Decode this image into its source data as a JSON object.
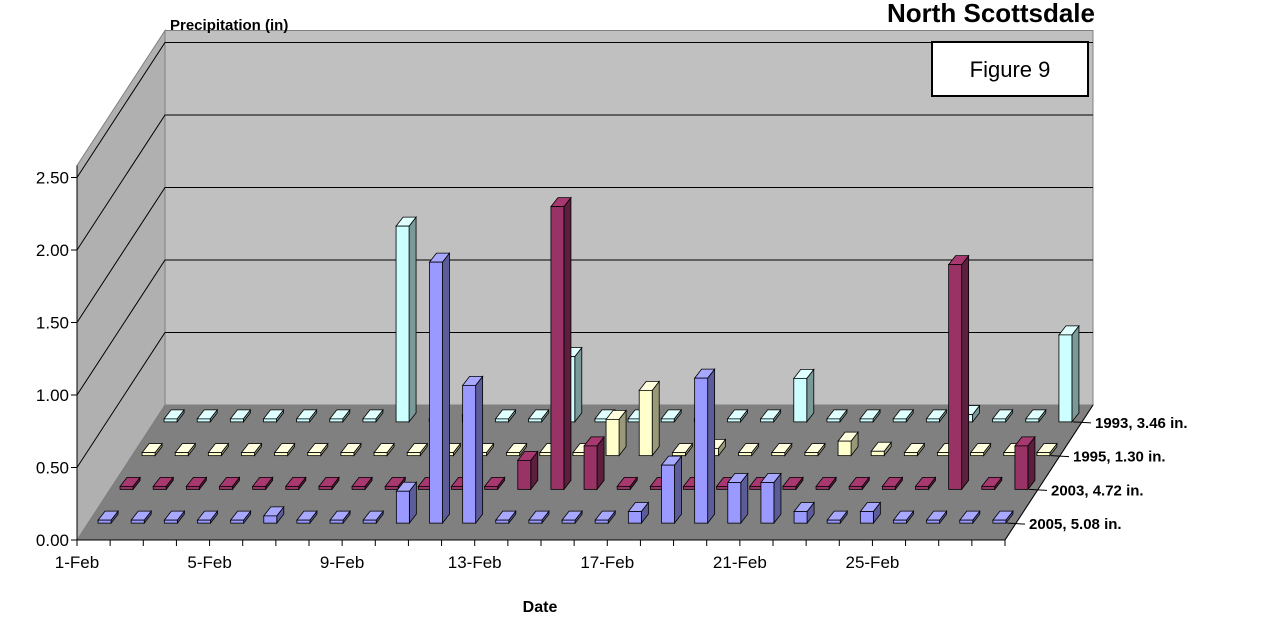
{
  "chart_data": {
    "type": "bar",
    "subtype": "3d-column",
    "title": "North Scottsdale",
    "ylabel": "Precipitation (in)",
    "xlabel": "Date",
    "annotation": "Figure 9",
    "ylim": [
      0,
      2.5
    ],
    "ytick_labels": [
      "0.00",
      "0.50",
      "1.00",
      "1.50",
      "2.00",
      "2.50"
    ],
    "ytick_values": [
      0,
      0.5,
      1.0,
      1.5,
      2.0,
      2.5
    ],
    "xtick_labels": [
      "1-Feb",
      "5-Feb",
      "9-Feb",
      "13-Feb",
      "17-Feb",
      "21-Feb",
      "25-Feb"
    ],
    "categories": [
      "1-Feb",
      "2-Feb",
      "3-Feb",
      "4-Feb",
      "5-Feb",
      "6-Feb",
      "7-Feb",
      "8-Feb",
      "9-Feb",
      "10-Feb",
      "11-Feb",
      "12-Feb",
      "13-Feb",
      "14-Feb",
      "15-Feb",
      "16-Feb",
      "17-Feb",
      "18-Feb",
      "19-Feb",
      "20-Feb",
      "21-Feb",
      "22-Feb",
      "23-Feb",
      "24-Feb",
      "25-Feb",
      "26-Feb",
      "27-Feb",
      "28-Feb"
    ],
    "grid": true,
    "legend_position": "right",
    "series": [
      {
        "name": "2005, 5.08 in.",
        "color": "#9999ff",
        "values": [
          0,
          0,
          0,
          0,
          0,
          0.05,
          0,
          0,
          0,
          0.22,
          1.8,
          0.95,
          0,
          0,
          0,
          0,
          0.08,
          0.4,
          1.0,
          0.28,
          0.28,
          0.08,
          0,
          0.08,
          0,
          0,
          0,
          0
        ]
      },
      {
        "name": "2003, 4.72 in.",
        "color": "#993366",
        "values": [
          0,
          0,
          0,
          0,
          0,
          0,
          0,
          0,
          0,
          0,
          0,
          0,
          0.2,
          1.95,
          0.3,
          0,
          0,
          0,
          0,
          0,
          0,
          0,
          0,
          0,
          0,
          1.55,
          0,
          0.3
        ]
      },
      {
        "name": "1995, 1.30 in.",
        "color": "#ffffcc",
        "values": [
          0,
          0,
          0,
          0,
          0,
          0,
          0,
          0,
          0,
          0,
          0,
          0,
          0,
          0,
          0.25,
          0.45,
          0,
          0.05,
          0,
          0,
          0,
          0.1,
          0.03,
          0,
          0,
          0,
          0,
          0
        ]
      },
      {
        "name": "1993, 3.46 in.",
        "color": "#ccffff",
        "values": [
          0,
          0,
          0,
          0,
          0,
          0,
          0,
          1.35,
          0,
          0.05,
          0,
          0,
          0.45,
          0,
          0,
          0,
          0,
          0,
          0,
          0.3,
          0,
          0,
          0,
          0,
          0.05,
          0,
          0,
          0.6
        ]
      }
    ]
  }
}
